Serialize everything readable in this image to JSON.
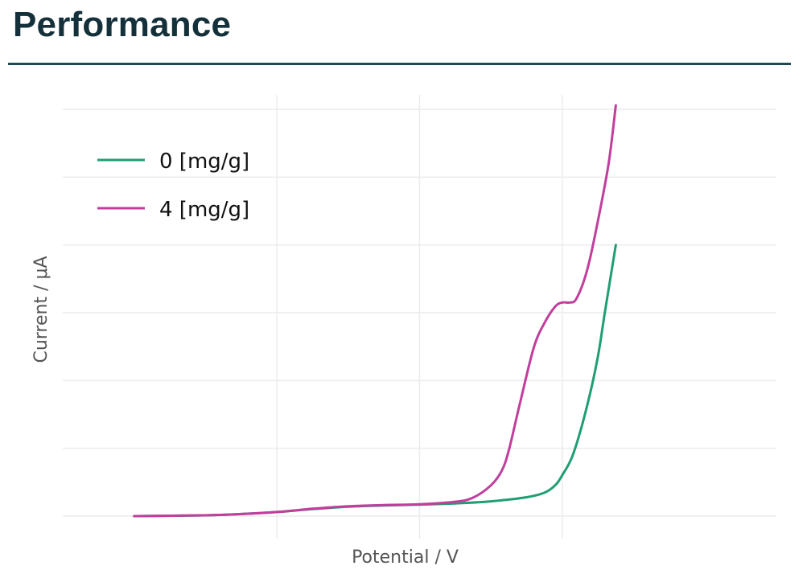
{
  "page": {
    "title": "Performance"
  },
  "chart_data": {
    "type": "line",
    "title": "",
    "xlabel": "Potential / V",
    "ylabel": "Current / μA",
    "xlim": [
      -1.0,
      1.0
    ],
    "ylim": [
      -0.02,
      1.0
    ],
    "x_tick_values": [
      -0.4,
      0.0,
      0.4
    ],
    "y_tick_values": [
      0,
      0.165,
      0.33,
      0.495,
      0.66,
      0.825,
      0.99
    ],
    "grid": true,
    "legend_position": "top-left",
    "series": [
      {
        "name": "0 [mg/g]",
        "color": "#1f9e74",
        "x": [
          -0.8,
          -0.6,
          -0.5,
          -0.4,
          -0.3,
          -0.2,
          -0.1,
          0.0,
          0.1,
          0.2,
          0.3,
          0.35,
          0.38,
          0.4,
          0.43,
          0.47,
          0.5,
          0.52,
          0.55
        ],
        "y": [
          0.0,
          0.002,
          0.005,
          0.01,
          0.017,
          0.023,
          0.026,
          0.028,
          0.031,
          0.036,
          0.046,
          0.057,
          0.075,
          0.1,
          0.15,
          0.27,
          0.39,
          0.5,
          0.66
        ]
      },
      {
        "name": "4 [mg/g]",
        "color": "#c13e9c",
        "x": [
          -0.8,
          -0.6,
          -0.5,
          -0.4,
          -0.3,
          -0.2,
          -0.1,
          0.0,
          0.1,
          0.15,
          0.2,
          0.23,
          0.25,
          0.28,
          0.32,
          0.35,
          0.38,
          0.4,
          0.42,
          0.44,
          0.47,
          0.5,
          0.53,
          0.55
        ],
        "y": [
          0.0,
          0.002,
          0.005,
          0.01,
          0.018,
          0.024,
          0.027,
          0.029,
          0.035,
          0.045,
          0.075,
          0.11,
          0.16,
          0.27,
          0.41,
          0.47,
          0.51,
          0.52,
          0.52,
          0.53,
          0.6,
          0.72,
          0.86,
          1.0
        ]
      }
    ]
  }
}
